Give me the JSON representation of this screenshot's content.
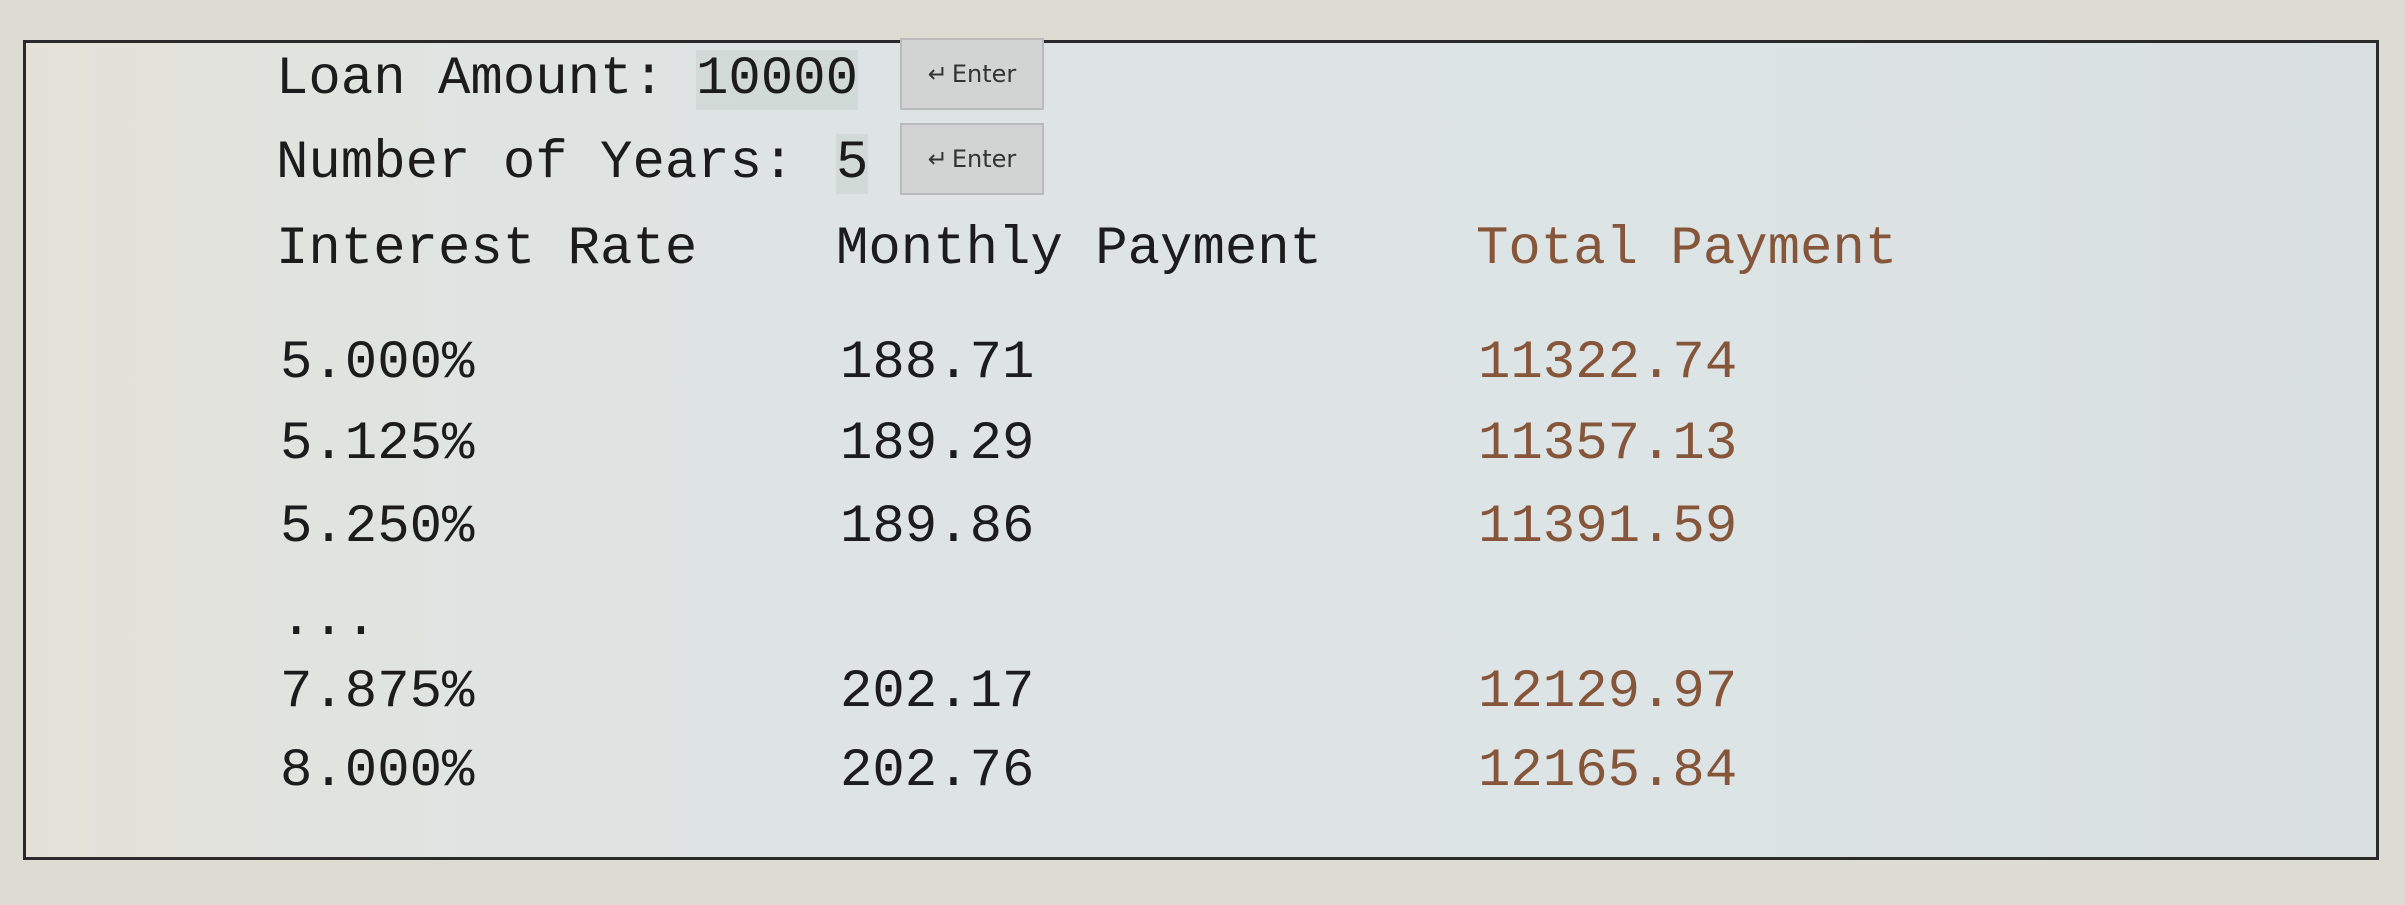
{
  "form": {
    "loan_label": "Loan Amount:",
    "loan_value": "10000",
    "years_label": "Number of Years:",
    "years_value": "5",
    "enter_label": "Enter",
    "enter_icon": "return-arrow-icon"
  },
  "table": {
    "headers": [
      "Interest Rate",
      "Monthly Payment",
      "Total Payment"
    ],
    "rows": [
      [
        "5.000%",
        "188.71",
        "11322.74"
      ],
      [
        "5.125%",
        "189.29",
        "11357.13"
      ],
      [
        "5.250%",
        "189.86",
        "11391.59"
      ],
      [
        "...",
        "",
        ""
      ],
      [
        "7.875%",
        "202.17",
        "12129.97"
      ],
      [
        "8.000%",
        "202.76",
        "12165.84"
      ]
    ]
  },
  "colors": {
    "total_column": "#86563a",
    "text": "#1c1c1c"
  }
}
